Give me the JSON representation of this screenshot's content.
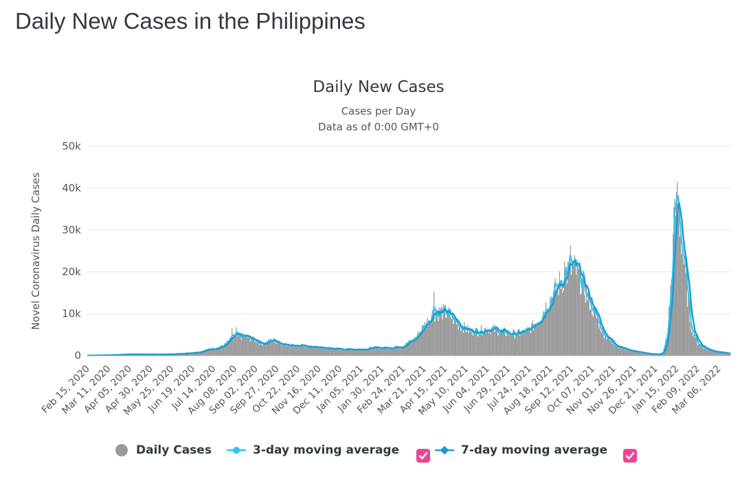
{
  "page": {
    "title": "Daily New Cases in the Philippines"
  },
  "colors": {
    "bars": "#999999",
    "ma3": "#2ec5f0",
    "ma7": "#1e9bcf",
    "checkbox": "#ec4691",
    "grid": "#e6e6e6",
    "text": "#333842"
  },
  "legend": {
    "daily": "Daily Cases",
    "ma3": "3-day moving average",
    "ma7": "7-day moving average",
    "checkbox_ma3": true,
    "checkbox_ma7": true
  },
  "chart_data": {
    "type": "bar",
    "title": "Daily New Cases",
    "subtitle_line1": "Cases per Day",
    "subtitle_line2": "Data as of 0:00 GMT+0",
    "ylabel": "Novel Coronavirus Daily Cases",
    "xlabel": "",
    "ylim": [
      0,
      50000
    ],
    "yticks": [
      0,
      10000,
      20000,
      30000,
      40000,
      50000
    ],
    "ytick_labels": [
      "0",
      "10k",
      "20k",
      "30k",
      "40k",
      "50k"
    ],
    "x_range": [
      "2020-02-15",
      "2022-03-20"
    ],
    "xtick_labels": [
      "Feb 15, 2020",
      "Mar 11, 2020",
      "Apr 05, 2020",
      "Apr 30, 2020",
      "May 25, 2020",
      "Jun 19, 2020",
      "Jul 14, 2020",
      "Aug 08, 2020",
      "Sep 02, 2020",
      "Sep 27, 2020",
      "Oct 22, 2020",
      "Nov 16, 2020",
      "Dec 11, 2020",
      "Jan 05, 2021",
      "Jan 30, 2021",
      "Feb 24, 2021",
      "Mar 21, 2021",
      "Apr 15, 2021",
      "May 10, 2021",
      "Jun 04, 2021",
      "Jun 29, 2021",
      "Jul 24, 2021",
      "Aug 18, 2021",
      "Sep 12, 2021",
      "Oct 07, 2021",
      "Nov 01, 2021",
      "Nov 26, 2021",
      "Dec 21, 2021",
      "Jan 15, 2022",
      "Feb 09, 2022",
      "Mar 06, 2022"
    ],
    "grid": true,
    "legend_position": "bottom",
    "series": [
      {
        "name": "Daily Cases",
        "type": "bar"
      },
      {
        "name": "3-day moving average",
        "type": "line"
      },
      {
        "name": "7-day moving average",
        "type": "line"
      }
    ],
    "trend_points": [
      [
        "2020-02-15",
        0
      ],
      [
        "2020-03-15",
        100
      ],
      [
        "2020-04-05",
        300
      ],
      [
        "2020-05-01",
        250
      ],
      [
        "2020-05-25",
        300
      ],
      [
        "2020-06-10",
        500
      ],
      [
        "2020-06-25",
        800
      ],
      [
        "2020-07-14",
        1700
      ],
      [
        "2020-07-25",
        2200
      ],
      [
        "2020-08-05",
        4000
      ],
      [
        "2020-08-12",
        4500
      ],
      [
        "2020-08-20",
        4600
      ],
      [
        "2020-09-02",
        3600
      ],
      [
        "2020-09-12",
        2800
      ],
      [
        "2020-09-22",
        3800
      ],
      [
        "2020-10-05",
        2700
      ],
      [
        "2020-10-20",
        2400
      ],
      [
        "2020-11-16",
        1900
      ],
      [
        "2020-12-11",
        1500
      ],
      [
        "2021-01-05",
        1500
      ],
      [
        "2021-01-20",
        1800
      ],
      [
        "2021-02-10",
        1900
      ],
      [
        "2021-02-24",
        2300
      ],
      [
        "2021-03-10",
        4000
      ],
      [
        "2021-03-21",
        7000
      ],
      [
        "2021-03-30",
        9800
      ],
      [
        "2021-04-10",
        10500
      ],
      [
        "2021-04-20",
        9800
      ],
      [
        "2021-05-01",
        7500
      ],
      [
        "2021-05-15",
        5800
      ],
      [
        "2021-05-25",
        5800
      ],
      [
        "2021-06-04",
        6500
      ],
      [
        "2021-06-15",
        6100
      ],
      [
        "2021-06-29",
        5300
      ],
      [
        "2021-07-10",
        5200
      ],
      [
        "2021-07-24",
        6000
      ],
      [
        "2021-08-05",
        9000
      ],
      [
        "2021-08-18",
        13500
      ],
      [
        "2021-08-30",
        17500
      ],
      [
        "2021-09-10",
        20500
      ],
      [
        "2021-09-17",
        20500
      ],
      [
        "2021-09-25",
        17500
      ],
      [
        "2021-10-07",
        11500
      ],
      [
        "2021-10-20",
        5500
      ],
      [
        "2021-11-01",
        2800
      ],
      [
        "2021-11-15",
        1500
      ],
      [
        "2021-11-26",
        1000
      ],
      [
        "2021-12-10",
        450
      ],
      [
        "2021-12-25",
        250
      ],
      [
        "2021-12-30",
        700
      ],
      [
        "2022-01-04",
        5000
      ],
      [
        "2022-01-09",
        18000
      ],
      [
        "2022-01-13",
        34000
      ],
      [
        "2022-01-16",
        36500
      ],
      [
        "2022-01-20",
        30000
      ],
      [
        "2022-01-26",
        18000
      ],
      [
        "2022-02-01",
        7500
      ],
      [
        "2022-02-09",
        3000
      ],
      [
        "2022-02-20",
        1500
      ],
      [
        "2022-03-06",
        800
      ],
      [
        "2022-03-20",
        400
      ]
    ],
    "spikes": [
      [
        "2020-08-05",
        6500
      ],
      [
        "2020-08-10",
        6800
      ],
      [
        "2021-04-02",
        15300
      ],
      [
        "2021-09-11",
        26300
      ],
      [
        "2021-09-04",
        22400
      ],
      [
        "2022-01-15",
        39000
      ],
      [
        "2022-01-13",
        37500
      ]
    ]
  }
}
